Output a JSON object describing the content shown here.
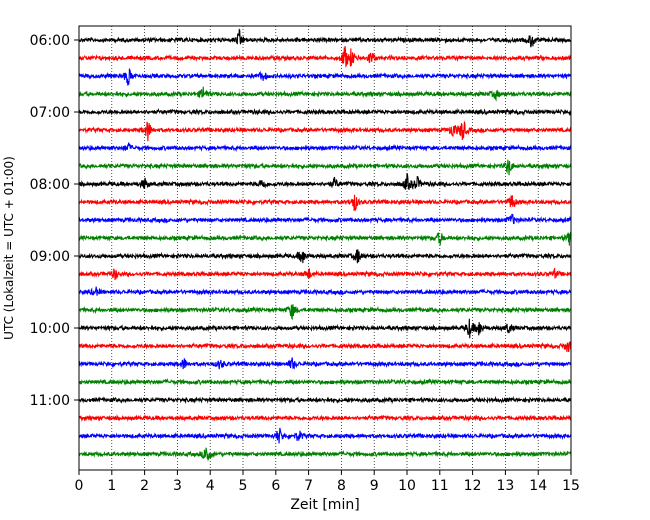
{
  "chart_data": {
    "type": "line",
    "title": "",
    "xlabel": "Zeit  [min]",
    "ylabel": "UTC (Lokalzeit = UTC + 01:00)",
    "xlim": [
      0,
      15
    ],
    "x_ticks": [
      "0",
      "1",
      "2",
      "3",
      "4",
      "5",
      "6",
      "7",
      "8",
      "9",
      "10",
      "11",
      "12",
      "13",
      "14",
      "15"
    ],
    "y_tick_labels": [
      "06:00",
      "07:00",
      "08:00",
      "09:00",
      "10:00",
      "11:00"
    ],
    "grid": "vertical dotted at each minute",
    "trace_interval_min": 15,
    "colors": [
      "#000000",
      "#ff0000",
      "#0000ff",
      "#008000"
    ],
    "traces": [
      {
        "start": "06:00",
        "events": [
          [
            4.9,
            10
          ],
          [
            13.8,
            9
          ]
        ]
      },
      {
        "start": "06:15",
        "events": [
          [
            8.1,
            12
          ],
          [
            8.3,
            9
          ],
          [
            8.9,
            8
          ]
        ]
      },
      {
        "start": "06:30",
        "events": [
          [
            1.5,
            10
          ],
          [
            5.6,
            5
          ]
        ]
      },
      {
        "start": "06:45",
        "events": [
          [
            3.8,
            8
          ],
          [
            12.7,
            5
          ]
        ]
      },
      {
        "start": "07:00",
        "events": []
      },
      {
        "start": "07:15",
        "events": [
          [
            2.1,
            11
          ],
          [
            11.7,
            13
          ],
          [
            11.4,
            8
          ]
        ]
      },
      {
        "start": "07:30",
        "events": [
          [
            1.5,
            5
          ]
        ]
      },
      {
        "start": "07:45",
        "events": [
          [
            13.1,
            10
          ]
        ]
      },
      {
        "start": "08:00",
        "events": [
          [
            2.0,
            6
          ],
          [
            5.6,
            6
          ],
          [
            7.8,
            6
          ],
          [
            10.0,
            9
          ],
          [
            10.3,
            8
          ]
        ]
      },
      {
        "start": "08:15",
        "events": [
          [
            8.4,
            10
          ],
          [
            13.2,
            9
          ]
        ]
      },
      {
        "start": "08:30",
        "events": [
          [
            13.2,
            6
          ]
        ]
      },
      {
        "start": "08:45",
        "events": [
          [
            11.0,
            7
          ],
          [
            15.0,
            12
          ]
        ]
      },
      {
        "start": "09:00",
        "events": [
          [
            6.8,
            9
          ],
          [
            8.5,
            8
          ]
        ]
      },
      {
        "start": "09:15",
        "events": [
          [
            1.1,
            6
          ],
          [
            7.0,
            6
          ],
          [
            14.5,
            4
          ]
        ]
      },
      {
        "start": "09:30",
        "events": [
          [
            0.5,
            5
          ]
        ]
      },
      {
        "start": "09:45",
        "events": [
          [
            6.5,
            9
          ]
        ]
      },
      {
        "start": "10:00",
        "events": [
          [
            11.9,
            10
          ],
          [
            12.2,
            8
          ],
          [
            13.1,
            6
          ]
        ]
      },
      {
        "start": "10:15",
        "events": [
          [
            14.9,
            7
          ]
        ]
      },
      {
        "start": "10:30",
        "events": [
          [
            3.2,
            6
          ],
          [
            4.3,
            5
          ],
          [
            6.5,
            6
          ]
        ]
      },
      {
        "start": "10:45",
        "events": []
      },
      {
        "start": "11:00",
        "events": []
      },
      {
        "start": "11:15",
        "events": []
      },
      {
        "start": "11:30",
        "events": [
          [
            6.1,
            9
          ],
          [
            6.7,
            6
          ]
        ]
      },
      {
        "start": "11:45",
        "events": [
          [
            3.9,
            13
          ]
        ]
      }
    ]
  }
}
